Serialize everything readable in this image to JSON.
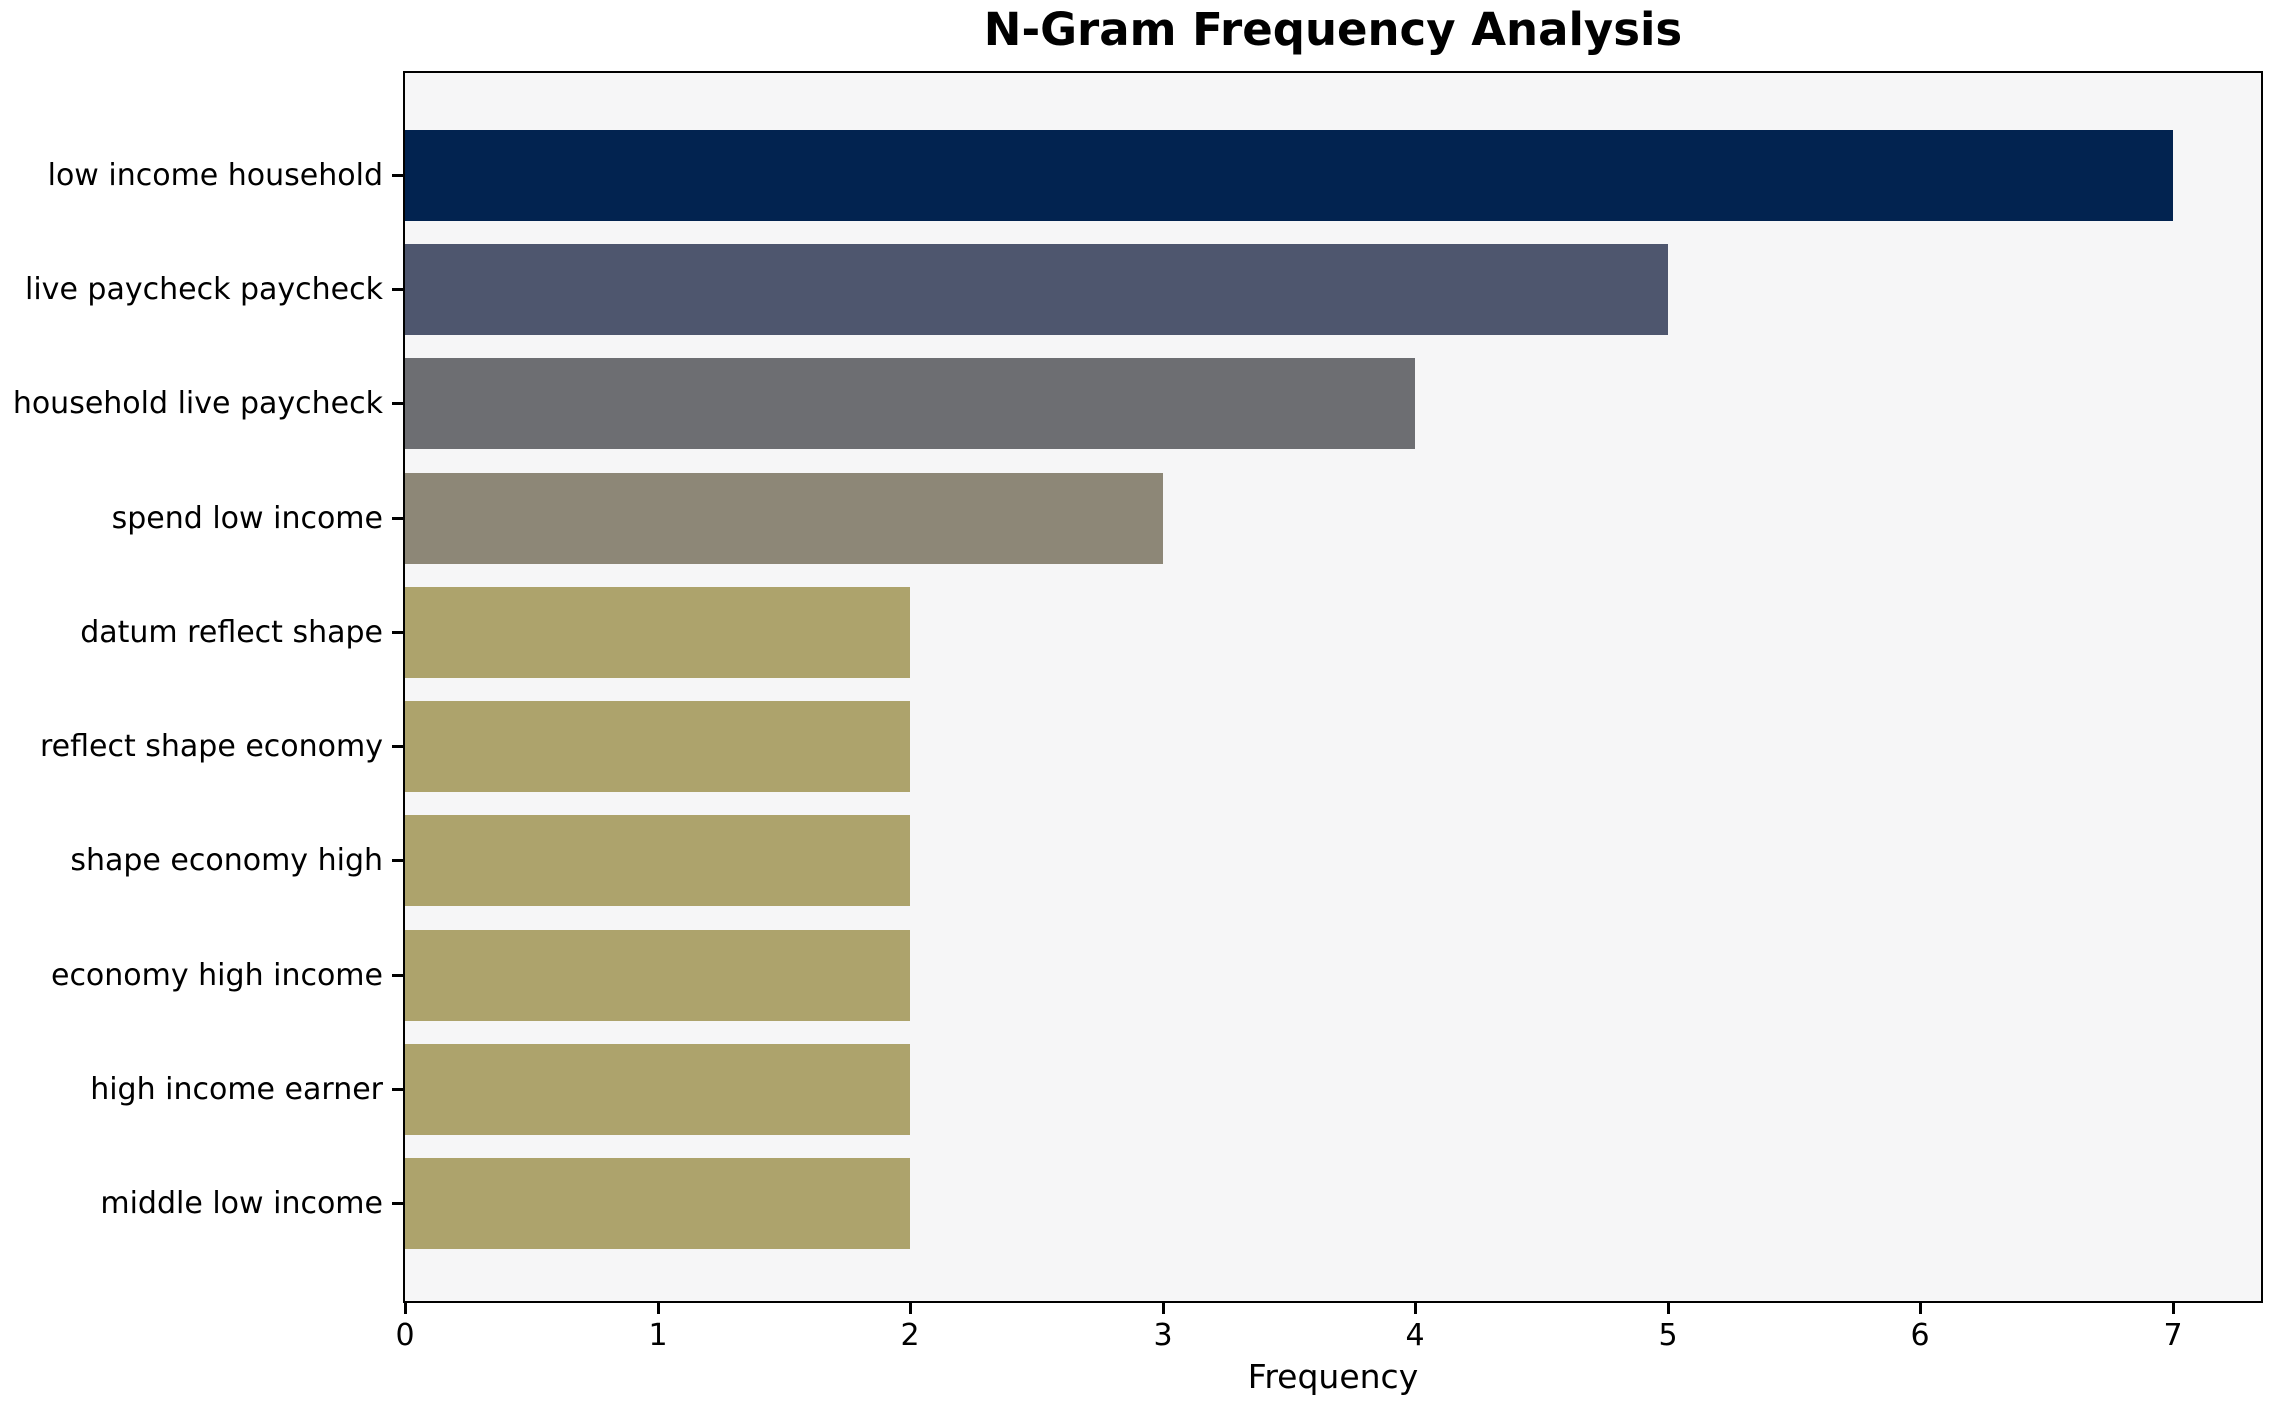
{
  "chart_data": {
    "type": "bar",
    "orientation": "horizontal",
    "title": "N-Gram Frequency Analysis",
    "xlabel": "Frequency",
    "ylabel": "",
    "categories": [
      "low income household",
      "live paycheck paycheck",
      "household live paycheck",
      "spend low income",
      "datum reflect shape",
      "reflect shape economy",
      "shape economy high",
      "economy high income",
      "high income earner",
      "middle low income"
    ],
    "values": [
      7,
      5,
      4,
      3,
      2,
      2,
      2,
      2,
      2,
      2
    ],
    "bar_colors": [
      "#022350",
      "#4e566e",
      "#6d6e72",
      "#8d8777",
      "#ada36c",
      "#ada36c",
      "#ada36c",
      "#ada36c",
      "#ada36c",
      "#ada36c"
    ],
    "xlim": [
      0,
      7.35
    ],
    "xticks": [
      0,
      1,
      2,
      3,
      4,
      5,
      6,
      7
    ],
    "grid": false,
    "legend": null,
    "plot_bg": "#f6f6f7",
    "figure_bg": "#ffffff",
    "axis_color": "#000000",
    "text_color": "#000000"
  }
}
